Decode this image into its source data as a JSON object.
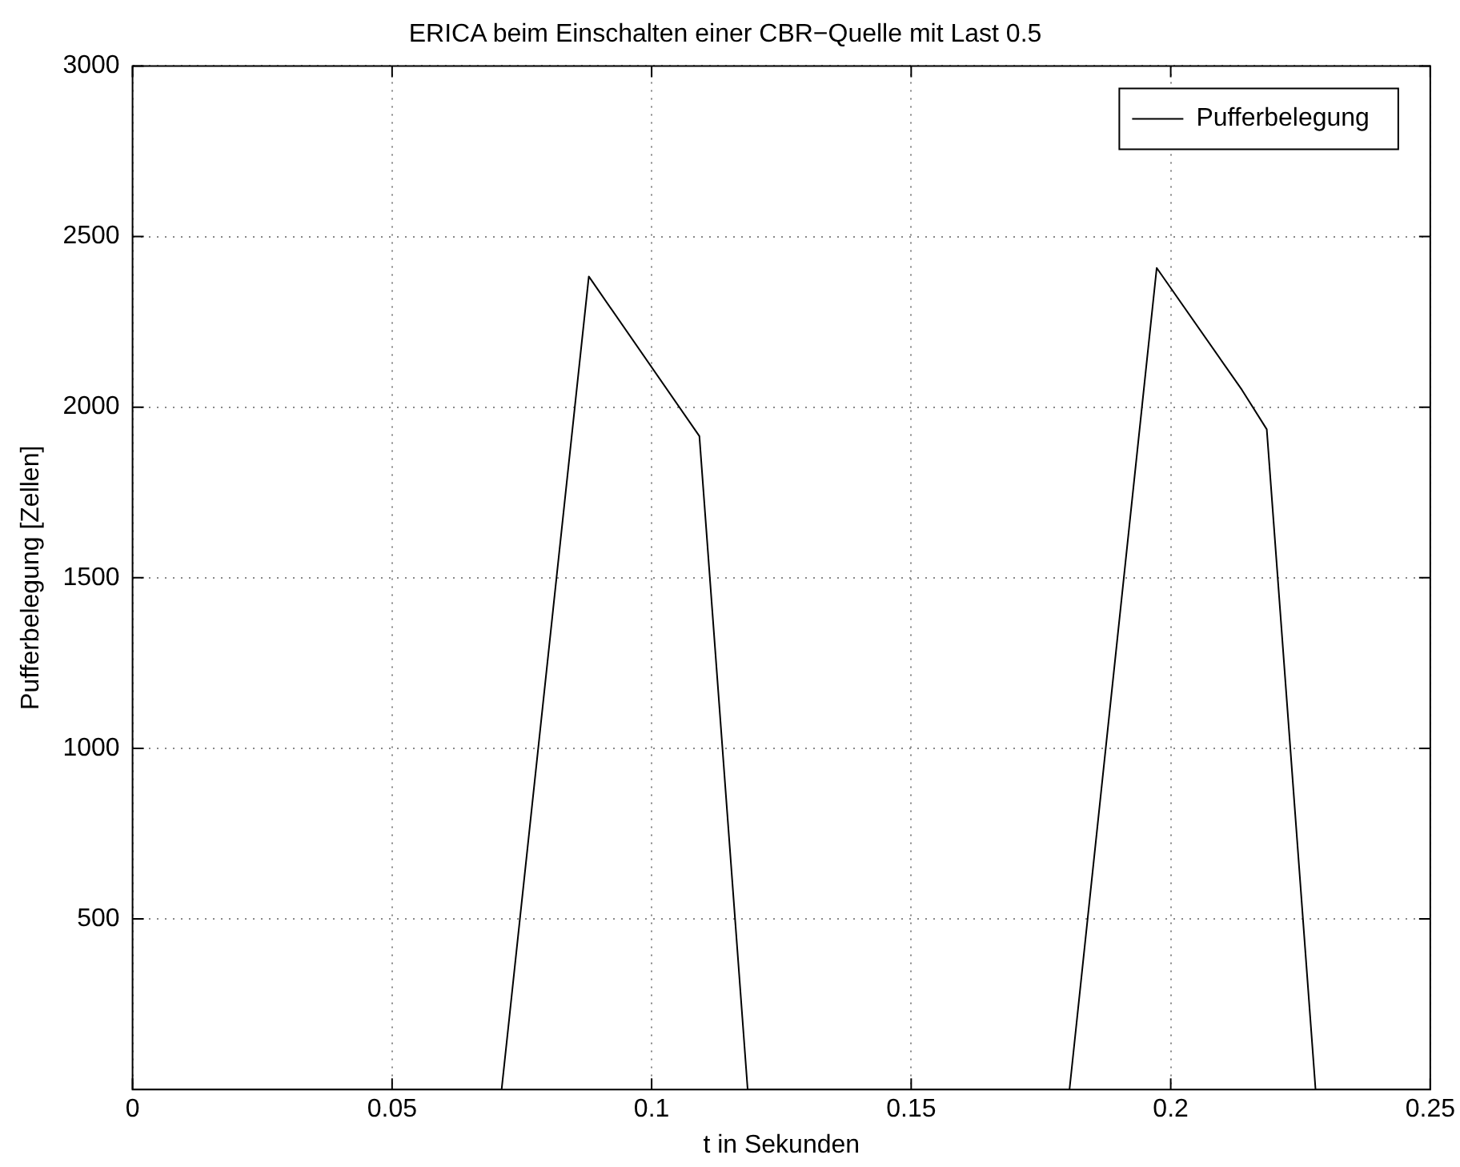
{
  "chart_data": {
    "type": "line",
    "title": "ERICA beim Einschalten einer CBR−Quelle mit Last 0.5",
    "xlabel": "t in Sekunden",
    "ylabel": "Pufferbelegung [Zellen]",
    "x": [
      0,
      0.0711,
      0.0879,
      0.1092,
      0.1185,
      0.1805,
      0.1973,
      0.2137,
      0.2185,
      0.2279,
      0.25
    ],
    "series": [
      {
        "name": "Pufferbelegung",
        "color": "#000000",
        "values": [
          0,
          0,
          2383,
          1915,
          0,
          0,
          2408,
          2051,
          1935,
          0,
          0
        ]
      }
    ],
    "xlim": [
      0,
      0.25
    ],
    "xticks": [
      0,
      0.05,
      0.1,
      0.15,
      0.2,
      0.25
    ],
    "ylim": [
      0,
      3000
    ],
    "yticks": [
      500,
      1000,
      1500,
      2000,
      2500,
      3000
    ],
    "grid": true,
    "legend": "top right",
    "marker": "none",
    "line_style": "solid"
  }
}
